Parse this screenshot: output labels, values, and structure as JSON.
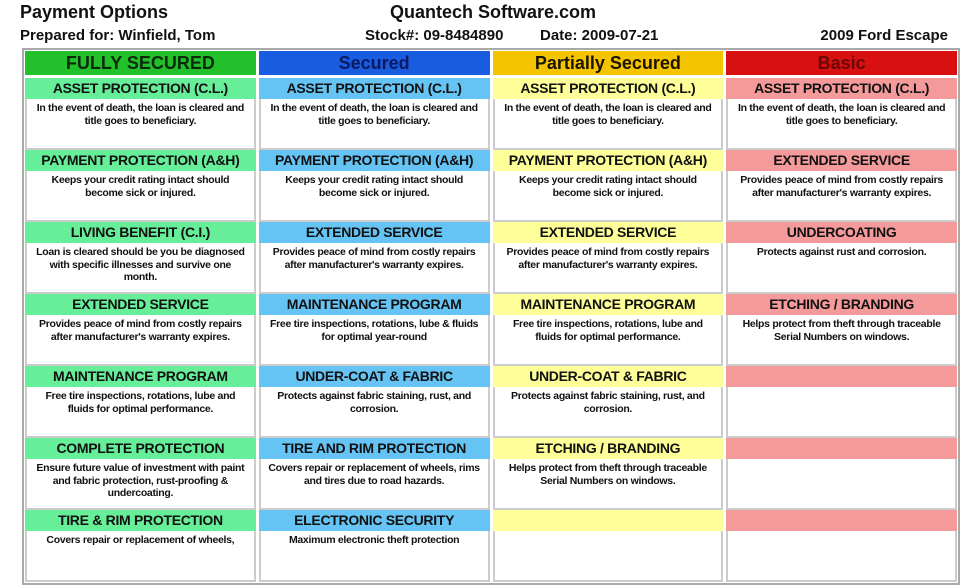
{
  "header": {
    "title": "Payment Options",
    "company": "Quantech Software.com",
    "prepared_for": "Prepared for: Winfield, Tom",
    "stock": "Stock#: 09-8484890",
    "date": "Date: 2009-07-21",
    "vehicle": "2009 Ford Escape"
  },
  "columns": [
    {
      "label": "FULLY SECURED",
      "head_color": "#22c02a",
      "head_text": "#0a2a0a",
      "item_color": "#66ee99",
      "items": [
        {
          "title": "ASSET PROTECTION (C.L.)",
          "desc": "In the event of death, the loan is cleared and title goes to beneficiary."
        },
        {
          "title": "PAYMENT PROTECTION (A&H)",
          "desc": "Keeps your credit rating intact should become sick or injured."
        },
        {
          "title": "LIVING BENEFIT (C.I.)",
          "desc": "Loan is cleared should be you be diagnosed with specific illnesses and survive one month."
        },
        {
          "title": "EXTENDED SERVICE",
          "desc": "Provides peace of mind from costly repairs after manufacturer's warranty expires."
        },
        {
          "title": "MAINTENANCE PROGRAM",
          "desc": "Free tire inspections, rotations, lube and fluids for optimal performance."
        },
        {
          "title": "COMPLETE PROTECTION",
          "desc": "Ensure future value of investment with paint and fabric protection, rust-proofing & undercoating."
        },
        {
          "title": "TIRE & RIM PROTECTION",
          "desc": "Covers repair or replacement of wheels,"
        }
      ]
    },
    {
      "label": "Secured",
      "head_color": "#1a5ce0",
      "head_text": "#0a1a60",
      "item_color": "#66c4f4",
      "items": [
        {
          "title": "ASSET PROTECTION (C.L.)",
          "desc": "In the event of death, the loan is cleared and title goes to beneficiary."
        },
        {
          "title": "PAYMENT PROTECTION (A&H)",
          "desc": "Keeps your credit rating intact should become sick or injured."
        },
        {
          "title": "EXTENDED SERVICE",
          "desc": "Provides peace of mind from costly repairs after manufacturer's warranty expires."
        },
        {
          "title": "MAINTENANCE PROGRAM",
          "desc": "Free tire inspections, rotations, lube & fluids for optimal year-round"
        },
        {
          "title": "UNDER-COAT & FABRIC",
          "desc": "Protects against fabric staining, rust, and corrosion."
        },
        {
          "title": "TIRE AND RIM PROTECTION",
          "desc": "Covers repair or replacement of wheels, rims and tires due to road hazards."
        },
        {
          "title": "ELECTRONIC SECURITY",
          "desc": "Maximum electronic theft protection"
        }
      ]
    },
    {
      "label": "Partially Secured",
      "head_color": "#f5c400",
      "head_text": "#1a1400",
      "item_color": "#ffff99",
      "items": [
        {
          "title": "ASSET PROTECTION (C.L.)",
          "desc": "In the event of death, the loan is cleared and title goes to beneficiary."
        },
        {
          "title": "PAYMENT PROTECTION (A&H)",
          "desc": "Keeps your credit rating intact should become sick or injured."
        },
        {
          "title": "EXTENDED SERVICE",
          "desc": "Provides peace of mind from costly repairs after manufacturer's warranty expires."
        },
        {
          "title": "MAINTENANCE PROGRAM",
          "desc": "Free tire inspections, rotations, lube and fluids for optimal performance."
        },
        {
          "title": "UNDER-COAT & FABRIC",
          "desc": "Protects against fabric staining, rust, and corrosion."
        },
        {
          "title": "ETCHING / BRANDING",
          "desc": "Helps protect from theft through traceable Serial Numbers on windows."
        },
        {
          "title": "",
          "desc": ""
        }
      ]
    },
    {
      "label": "Basic",
      "head_color": "#d81010",
      "head_text": "#6a0808",
      "item_color": "#f59a9a",
      "items": [
        {
          "title": "ASSET PROTECTION (C.L.)",
          "desc": "In the event of death, the loan is cleared and title goes to beneficiary."
        },
        {
          "title": "EXTENDED SERVICE",
          "desc": "Provides peace of mind from costly repairs after manufacturer's warranty expires."
        },
        {
          "title": "UNDERCOATING",
          "desc": "Protects against rust and corrosion."
        },
        {
          "title": "ETCHING / BRANDING",
          "desc": "Helps protect from theft through traceable Serial Numbers on windows."
        },
        {
          "title": "",
          "desc": ""
        },
        {
          "title": "",
          "desc": ""
        },
        {
          "title": "",
          "desc": ""
        }
      ]
    }
  ]
}
